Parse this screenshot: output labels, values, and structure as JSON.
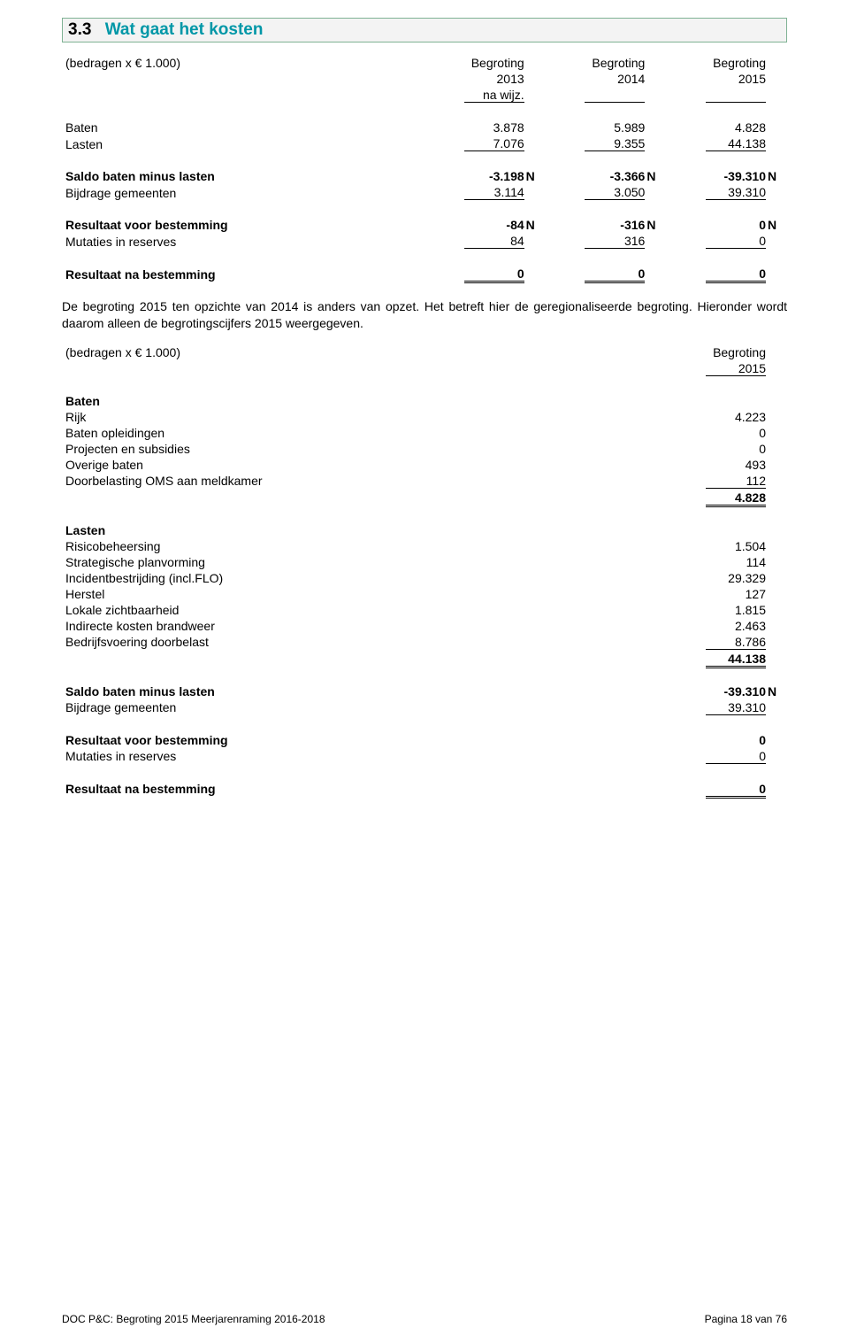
{
  "section_header": {
    "number": "3.3",
    "title": "Wat gaat het kosten"
  },
  "table1": {
    "caption": "(bedragen x € 1.000)",
    "col_headers": {
      "c1a": "Begroting",
      "c1b": "2013",
      "c1c": "na wijz.",
      "c2a": "Begroting",
      "c2b": "2014",
      "c3a": "Begroting",
      "c3b": "2015"
    },
    "rows_block1": [
      {
        "label": "Baten",
        "v": [
          "3.878",
          "5.989",
          "4.828"
        ],
        "bold": false
      },
      {
        "label": "Lasten",
        "v": [
          "7.076",
          "9.355",
          "44.138"
        ],
        "bold": false,
        "underline": "single"
      }
    ],
    "rows_block2": [
      {
        "label": "Saldo baten minus lasten",
        "v": [
          "-3.198",
          "-3.366",
          "-39.310"
        ],
        "suffix": [
          "N",
          "N",
          "N"
        ],
        "bold": true
      },
      {
        "label": "Bijdrage gemeenten",
        "v": [
          "3.114",
          "3.050",
          "39.310"
        ],
        "bold": false,
        "underline": "single"
      }
    ],
    "rows_block3": [
      {
        "label": "Resultaat voor bestemming",
        "v": [
          "-84",
          "-316",
          "0"
        ],
        "suffix": [
          "N",
          "N",
          "N"
        ],
        "bold": true
      },
      {
        "label": "Mutaties in reserves",
        "v": [
          "84",
          "316",
          "0"
        ],
        "bold": false,
        "underline": "single"
      }
    ],
    "rows_block4": [
      {
        "label": "Resultaat na bestemming",
        "v": [
          "0",
          "0",
          "0"
        ],
        "bold": true,
        "underline": "double"
      }
    ]
  },
  "paragraph": "De begroting 2015 ten opzichte van 2014 is anders van opzet. Het betreft hier de geregionaliseerde begroting. Hieronder wordt daarom alleen de begrotingscijfers 2015 weergegeven.",
  "table2": {
    "caption": "(bedragen x € 1.000)",
    "col_headers": {
      "c1a": "Begroting",
      "c1b": "2015"
    },
    "baten_header": "Baten",
    "baten_rows": [
      {
        "label": "Rijk",
        "v": "4.223"
      },
      {
        "label": "Baten opleidingen",
        "v": "0"
      },
      {
        "label": "Projecten en subsidies",
        "v": "0"
      },
      {
        "label": "Overige baten",
        "v": "493"
      },
      {
        "label": "Doorbelasting OMS aan meldkamer",
        "v": "112",
        "underline": "single"
      }
    ],
    "baten_total": {
      "v": "4.828",
      "underline": "double"
    },
    "lasten_header": "Lasten",
    "lasten_rows": [
      {
        "label": "Risicobeheersing",
        "v": "1.504"
      },
      {
        "label": "Strategische planvorming",
        "v": "114"
      },
      {
        "label": "Incidentbestrijding (incl.FLO)",
        "v": "29.329"
      },
      {
        "label": "Herstel",
        "v": "127"
      },
      {
        "label": "Lokale zichtbaarheid",
        "v": "1.815"
      },
      {
        "label": "Indirecte kosten brandweer",
        "v": "2.463"
      },
      {
        "label": "Bedrijfsvoering doorbelast",
        "v": "8.786",
        "underline": "single"
      }
    ],
    "lasten_total": {
      "v": "44.138",
      "underline": "double"
    },
    "summary_rows": [
      {
        "label": "Saldo baten minus lasten",
        "v": "-39.310",
        "suffix": "N",
        "bold": true
      },
      {
        "label": "Bijdrage gemeenten",
        "v": "39.310",
        "underline": "single"
      },
      {
        "label": "Resultaat voor bestemming",
        "v": "0",
        "bold": true
      },
      {
        "label": "Mutaties in reserves",
        "v": "0",
        "underline": "single"
      },
      {
        "label": "Resultaat na bestemming",
        "v": "0",
        "bold": true,
        "underline": "double"
      }
    ]
  },
  "footer": {
    "left": "DOC P&C: Begroting 2015 Meerjarenraming 2016-2018",
    "right": "Pagina 18 van 76"
  }
}
